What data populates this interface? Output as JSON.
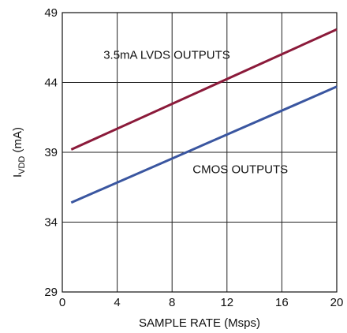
{
  "chart_data": {
    "type": "line",
    "xlabel": "SAMPLE RATE (Msps)",
    "ylabel": "I",
    "ylabel_sub": "VDD",
    "ylabel_unit": " (mA)",
    "xlim": [
      0,
      20
    ],
    "ylim": [
      29,
      49
    ],
    "xticks": [
      0,
      4,
      8,
      12,
      16,
      20
    ],
    "yticks": [
      29,
      34,
      39,
      44,
      49
    ],
    "grid": true,
    "series": [
      {
        "name": "3.5mA LVDS OUTPUTS",
        "color": "#8b1a3a",
        "x": [
          0.65,
          20
        ],
        "y": [
          39.2,
          47.8
        ]
      },
      {
        "name": "CMOS OUTPUTS",
        "color": "#3a56a0",
        "x": [
          0.65,
          20
        ],
        "y": [
          35.4,
          43.7
        ]
      }
    ],
    "annotations": [
      {
        "text": "3.5mA LVDS OUTPUTS",
        "x": 3.0,
        "y": 45.7
      },
      {
        "text": "CMOS OUTPUTS",
        "x": 9.5,
        "y": 37.5
      }
    ]
  }
}
